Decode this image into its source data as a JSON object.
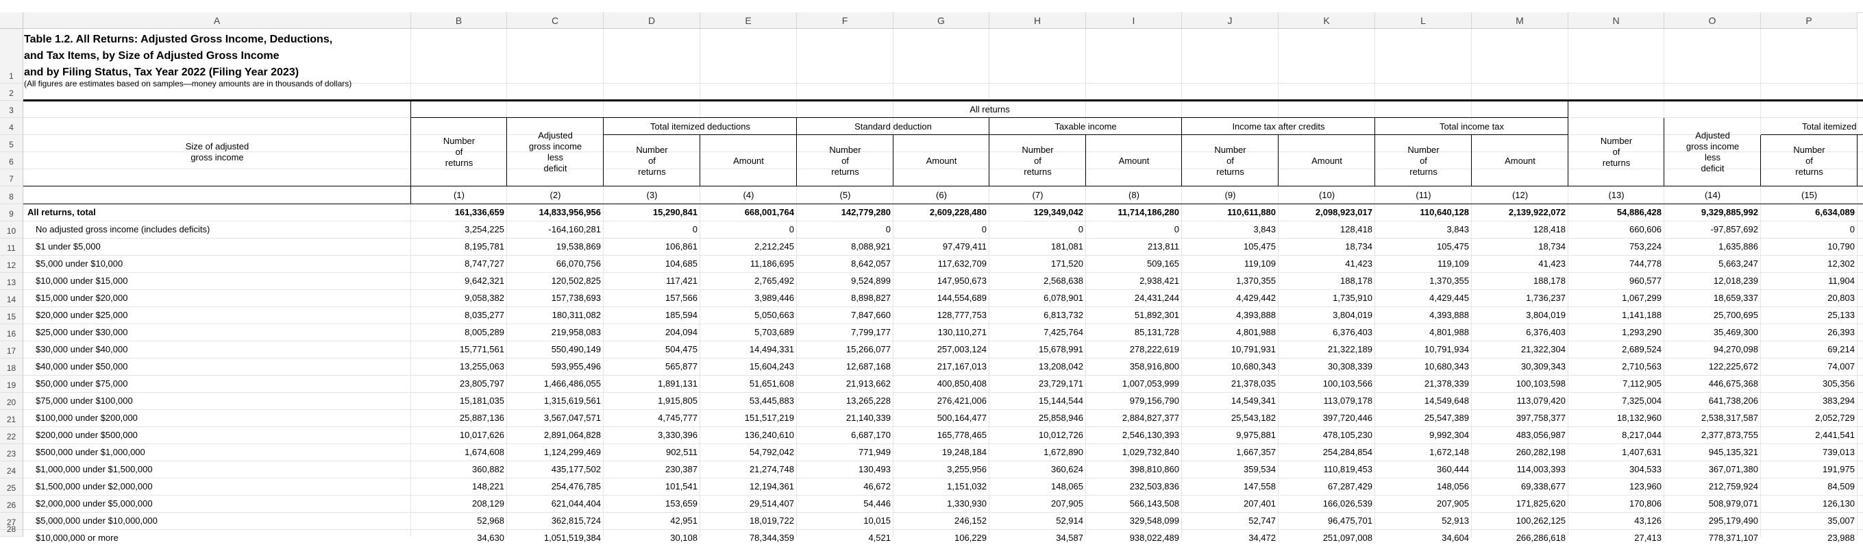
{
  "columns": [
    "A",
    "B",
    "C",
    "D",
    "E",
    "F",
    "G",
    "H",
    "I",
    "J",
    "K",
    "L",
    "M",
    "N",
    "O",
    "P"
  ],
  "row_numbers": [
    1,
    2,
    3,
    4,
    5,
    6,
    7,
    8,
    9,
    10,
    11,
    12,
    13,
    14,
    15,
    16,
    17,
    18,
    19,
    20,
    21,
    22,
    23,
    24,
    25,
    26,
    27,
    28
  ],
  "title_lines": [
    "Table 1.2.  All Returns: Adjusted Gross Income, Deductions,",
    "and Tax Items, by Size of Adjusted Gross Income",
    "and by Filing Status, Tax Year 2022 (Filing Year 2023)"
  ],
  "note": "(All figures are estimates based on samples—money amounts are in thousands of dollars)",
  "headers": {
    "all_returns": "All returns",
    "size_label": "Size of adjusted\ngross income",
    "number_of_returns": "Number\nof\nreturns",
    "agi_less_deficit": "Adjusted\ngross income\nless\ndeficit",
    "total_itemized": "Total itemized deductions",
    "standard_deduction": "Standard deduction",
    "taxable_income": "Taxable income",
    "income_tax_after_credits": "Income tax after credits",
    "total_income_tax": "Total income tax",
    "total_itemized_partial": "Total itemized",
    "amount": "Amount",
    "col_numbers": [
      "(1)",
      "(2)",
      "(3)",
      "(4)",
      "(5)",
      "(6)",
      "(7)",
      "(8)",
      "(9)",
      "(10)",
      "(11)",
      "(12)",
      "(13)",
      "(14)",
      "(15)"
    ]
  },
  "rows": [
    {
      "label": "All returns, total",
      "bold": true,
      "values": [
        "161,336,659",
        "14,833,956,956",
        "15,290,841",
        "668,001,764",
        "142,779,280",
        "2,609,228,480",
        "129,349,042",
        "11,714,186,280",
        "110,611,880",
        "2,098,923,017",
        "110,640,128",
        "2,139,922,072",
        "54,886,428",
        "9,329,885,992",
        "6,634,089"
      ]
    },
    {
      "label": "No adjusted gross income (includes deficits)",
      "values": [
        "3,254,225",
        "-164,160,281",
        "0",
        "0",
        "0",
        "0",
        "0",
        "0",
        "3,843",
        "128,418",
        "3,843",
        "128,418",
        "660,606",
        "-97,857,692",
        "0"
      ]
    },
    {
      "label": "$1 under $5,000",
      "values": [
        "8,195,781",
        "19,538,869",
        "106,861",
        "2,212,245",
        "8,088,921",
        "97,479,411",
        "181,081",
        "213,811",
        "105,475",
        "18,734",
        "105,475",
        "18,734",
        "753,224",
        "1,635,886",
        "10,790"
      ]
    },
    {
      "label": "$5,000 under $10,000",
      "values": [
        "8,747,727",
        "66,070,756",
        "104,685",
        "11,186,695",
        "8,642,057",
        "117,632,709",
        "171,520",
        "509,165",
        "119,109",
        "41,423",
        "119,109",
        "41,423",
        "744,778",
        "5,663,247",
        "12,302"
      ]
    },
    {
      "label": "$10,000 under $15,000",
      "values": [
        "9,642,321",
        "120,502,825",
        "117,421",
        "2,765,492",
        "9,524,899",
        "147,950,673",
        "2,568,638",
        "2,938,421",
        "1,370,355",
        "188,178",
        "1,370,355",
        "188,178",
        "960,577",
        "12,018,239",
        "11,904"
      ]
    },
    {
      "label": "$15,000 under $20,000",
      "values": [
        "9,058,382",
        "157,738,693",
        "157,566",
        "3,989,446",
        "8,898,827",
        "144,554,689",
        "6,078,901",
        "24,431,244",
        "4,429,442",
        "1,735,910",
        "4,429,445",
        "1,736,237",
        "1,067,299",
        "18,659,337",
        "20,803"
      ]
    },
    {
      "label": "$20,000 under $25,000",
      "values": [
        "8,035,277",
        "180,311,082",
        "185,594",
        "5,050,663",
        "7,847,660",
        "128,777,753",
        "6,813,732",
        "51,892,301",
        "4,393,888",
        "3,804,019",
        "4,393,888",
        "3,804,019",
        "1,141,188",
        "25,700,695",
        "25,133"
      ]
    },
    {
      "label": "$25,000 under $30,000",
      "values": [
        "8,005,289",
        "219,958,083",
        "204,094",
        "5,703,689",
        "7,799,177",
        "130,110,271",
        "7,425,764",
        "85,131,728",
        "4,801,988",
        "6,376,403",
        "4,801,988",
        "6,376,403",
        "1,293,290",
        "35,469,300",
        "26,393"
      ]
    },
    {
      "label": "$30,000 under $40,000",
      "values": [
        "15,771,561",
        "550,490,149",
        "504,475",
        "14,494,331",
        "15,266,077",
        "257,003,124",
        "15,678,991",
        "278,222,619",
        "10,791,931",
        "21,322,189",
        "10,791,934",
        "21,322,304",
        "2,689,524",
        "94,270,098",
        "69,214"
      ]
    },
    {
      "label": "$40,000 under $50,000",
      "values": [
        "13,255,063",
        "593,955,496",
        "565,877",
        "15,604,243",
        "12,687,168",
        "217,167,013",
        "13,208,042",
        "358,916,800",
        "10,680,343",
        "30,308,339",
        "10,680,343",
        "30,309,343",
        "2,710,563",
        "122,225,672",
        "74,007"
      ]
    },
    {
      "label": "$50,000 under $75,000",
      "values": [
        "23,805,797",
        "1,466,486,055",
        "1,891,131",
        "51,651,608",
        "21,913,662",
        "400,850,408",
        "23,729,171",
        "1,007,053,999",
        "21,378,035",
        "100,103,566",
        "21,378,339",
        "100,103,598",
        "7,112,905",
        "446,675,368",
        "305,356"
      ]
    },
    {
      "label": "$75,000 under $100,000",
      "values": [
        "15,181,035",
        "1,315,619,561",
        "1,915,805",
        "53,445,883",
        "13,265,228",
        "276,421,006",
        "15,144,544",
        "979,156,790",
        "14,549,341",
        "113,079,178",
        "14,549,648",
        "113,079,420",
        "7,325,004",
        "641,738,206",
        "383,294"
      ]
    },
    {
      "label": "$100,000 under $200,000",
      "values": [
        "25,887,136",
        "3,567,047,571",
        "4,745,777",
        "151,517,219",
        "21,140,339",
        "500,164,477",
        "25,858,946",
        "2,884,827,377",
        "25,543,182",
        "397,720,446",
        "25,547,389",
        "397,758,377",
        "18,132,960",
        "2,538,317,587",
        "2,052,729"
      ]
    },
    {
      "label": "$200,000 under $500,000",
      "values": [
        "10,017,626",
        "2,891,064,828",
        "3,330,396",
        "136,240,610",
        "6,687,170",
        "165,778,465",
        "10,012,726",
        "2,546,130,393",
        "9,975,881",
        "478,105,230",
        "9,992,304",
        "483,056,987",
        "8,217,044",
        "2,377,873,755",
        "2,441,541"
      ]
    },
    {
      "label": "$500,000 under $1,000,000",
      "values": [
        "1,674,608",
        "1,124,299,469",
        "902,511",
        "54,792,042",
        "771,949",
        "19,248,184",
        "1,672,890",
        "1,029,732,840",
        "1,667,357",
        "254,284,854",
        "1,672,148",
        "260,282,198",
        "1,407,631",
        "945,135,321",
        "739,013"
      ]
    },
    {
      "label": "$1,000,000 under $1,500,000",
      "values": [
        "360,882",
        "435,177,502",
        "230,387",
        "21,274,748",
        "130,493",
        "3,255,956",
        "360,624",
        "398,810,860",
        "359,534",
        "110,819,453",
        "360,444",
        "114,003,393",
        "304,533",
        "367,071,380",
        "191,975"
      ]
    },
    {
      "label": "$1,500,000 under $2,000,000",
      "values": [
        "148,221",
        "254,476,785",
        "101,541",
        "12,194,361",
        "46,672",
        "1,151,032",
        "148,065",
        "232,503,836",
        "147,558",
        "67,287,429",
        "148,056",
        "69,338,677",
        "123,960",
        "212,759,924",
        "84,509"
      ]
    },
    {
      "label": "$2,000,000 under $5,000,000",
      "values": [
        "208,129",
        "621,044,404",
        "153,659",
        "29,514,407",
        "54,446",
        "1,330,930",
        "207,905",
        "566,143,508",
        "207,401",
        "166,026,539",
        "207,905",
        "171,825,620",
        "170,806",
        "508,979,071",
        "126,130"
      ]
    },
    {
      "label": "$5,000,000 under $10,000,000",
      "values": [
        "52,968",
        "362,815,724",
        "42,951",
        "18,019,722",
        "10,015",
        "246,152",
        "52,914",
        "329,548,099",
        "52,747",
        "96,475,701",
        "52,913",
        "100,262,125",
        "43,126",
        "295,179,490",
        "35,007"
      ]
    },
    {
      "label": "$10,000,000 or more",
      "values": [
        "34,630",
        "1,051,519,384",
        "30,108",
        "78,344,359",
        "4,521",
        "106,229",
        "34,587",
        "938,022,489",
        "34,472",
        "251,097,008",
        "34,604",
        "266,286,618",
        "27,413",
        "778,371,107",
        "23,988"
      ]
    }
  ]
}
